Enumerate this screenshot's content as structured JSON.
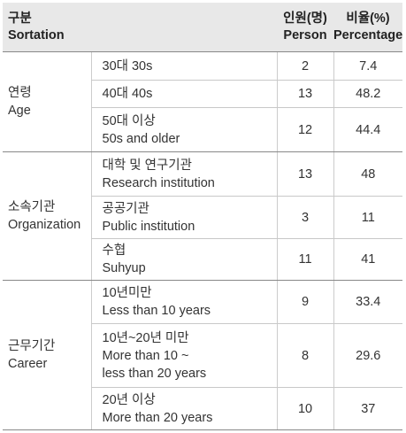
{
  "header": {
    "sortation_ko": "구분",
    "sortation_en": "Sortation",
    "person_ko": "인원(명)",
    "person_en": "Person",
    "percentage_ko": "비율(%)",
    "percentage_en": "Percentage"
  },
  "groups": [
    {
      "label_ko": "연령",
      "label_en": "Age",
      "rows": [
        {
          "item_line1": "30대  30s",
          "item_line2": "",
          "item_line3": "",
          "person": "2",
          "percentage": "7.4"
        },
        {
          "item_line1": "40대  40s",
          "item_line2": "",
          "item_line3": "",
          "person": "13",
          "percentage": "48.2"
        },
        {
          "item_line1": "50대 이상",
          "item_line2": "50s and older",
          "item_line3": "",
          "person": "12",
          "percentage": "44.4"
        }
      ]
    },
    {
      "label_ko": "소속기관",
      "label_en": "Organization",
      "rows": [
        {
          "item_line1": "대학 및 연구기관",
          "item_line2": "Research institution",
          "item_line3": "",
          "person": "13",
          "percentage": "48"
        },
        {
          "item_line1": "공공기관",
          "item_line2": "Public institution",
          "item_line3": "",
          "person": "3",
          "percentage": "11"
        },
        {
          "item_line1": "수협",
          "item_line2": "Suhyup",
          "item_line3": "",
          "person": "11",
          "percentage": "41"
        }
      ]
    },
    {
      "label_ko": "근무기간",
      "label_en": "Career",
      "rows": [
        {
          "item_line1": "10년미만",
          "item_line2": "Less than 10 years",
          "item_line3": "",
          "person": "9",
          "percentage": "33.4"
        },
        {
          "item_line1": "10년~20년 미만",
          "item_line2": "More than 10 ~",
          "item_line3": "less than 20 years",
          "person": "8",
          "percentage": "29.6"
        },
        {
          "item_line1": "20년 이상",
          "item_line2": "More than 20 years",
          "item_line3": "",
          "person": "10",
          "percentage": "37"
        }
      ]
    }
  ]
}
